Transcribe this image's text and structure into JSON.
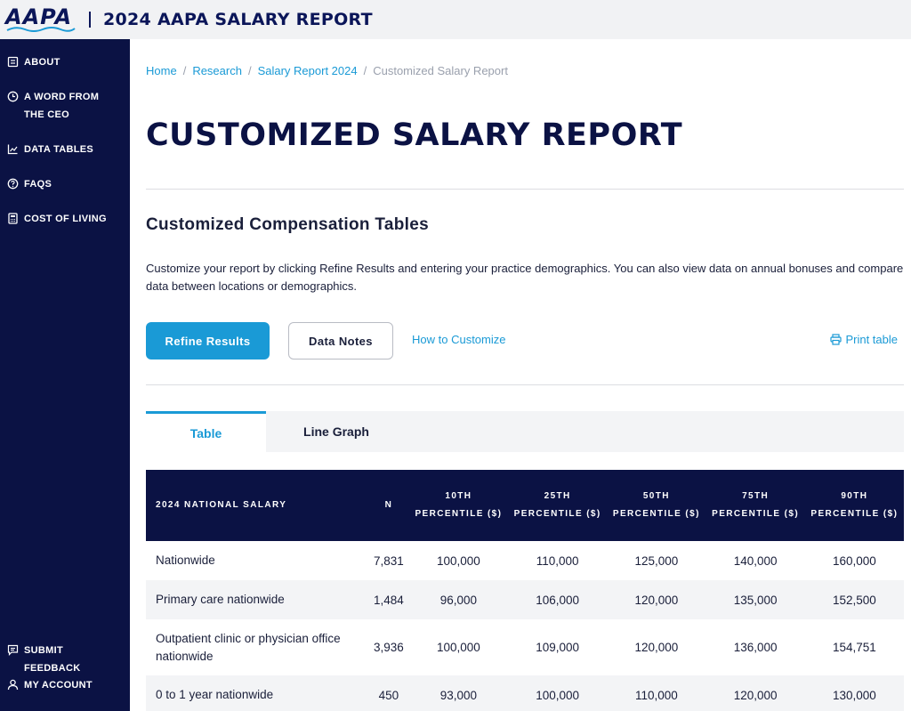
{
  "header": {
    "logo_text": "AAPA",
    "title": "2024 AAPA SALARY REPORT"
  },
  "sidebar": {
    "items": [
      {
        "label": "ABOUT",
        "icon": "document-icon"
      },
      {
        "label": "A WORD FROM THE CEO",
        "icon": "clock-icon"
      },
      {
        "label": "DATA TABLES",
        "icon": "chart-icon"
      },
      {
        "label": "FAQS",
        "icon": "question-icon"
      },
      {
        "label": "COST OF LIVING",
        "icon": "calculator-icon"
      }
    ],
    "bottom_items": [
      {
        "label": "SUBMIT FEEDBACK",
        "icon": "feedback-icon"
      },
      {
        "label": "MY ACCOUNT",
        "icon": "user-icon"
      }
    ]
  },
  "breadcrumb": {
    "items": [
      "Home",
      "Research",
      "Salary Report 2024"
    ],
    "current": "Customized Salary Report"
  },
  "page": {
    "title": "CUSTOMIZED SALARY REPORT",
    "section_title": "Customized Compensation Tables",
    "intro": "Customize your report by clicking Refine Results and entering your practice demographics. You can also view data on annual bonuses and compare data between locations or demographics."
  },
  "actions": {
    "refine_label": "Refine Results",
    "notes_label": "Data Notes",
    "how_label": "How to Customize",
    "print_label": "Print table"
  },
  "tabs": [
    "Table",
    "Line Graph"
  ],
  "table": {
    "headers": [
      "2024 NATIONAL SALARY",
      "N",
      "10TH PERCENTILE ($)",
      "25TH PERCENTILE ($)",
      "50TH PERCENTILE ($)",
      "75TH PERCENTILE ($)",
      "90TH PERCENTILE ($)"
    ],
    "rows": [
      [
        "Nationwide",
        "7,831",
        "100,000",
        "110,000",
        "125,000",
        "140,000",
        "160,000"
      ],
      [
        "Primary care nationwide",
        "1,484",
        "96,000",
        "106,000",
        "120,000",
        "135,000",
        "152,500"
      ],
      [
        "Outpatient clinic or physician office nationwide",
        "3,936",
        "100,000",
        "109,000",
        "120,000",
        "136,000",
        "154,751"
      ],
      [
        "0 to 1 year nationwide",
        "450",
        "93,000",
        "100,000",
        "110,000",
        "120,000",
        "130,000"
      ]
    ]
  },
  "colors": {
    "navy": "#0b1244",
    "accent": "#1a9ad6",
    "header_bg": "#f1f2f4"
  }
}
